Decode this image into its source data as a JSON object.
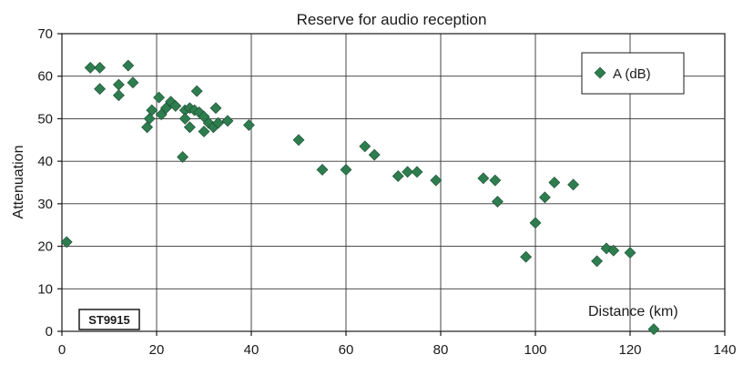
{
  "chart_data": {
    "type": "scatter",
    "title": "Reserve for audio reception",
    "ylabel": "Attenuation",
    "xlabel": "Distance (km)",
    "xlim": [
      0,
      140
    ],
    "ylim": [
      0,
      70
    ],
    "x_ticks": [
      0,
      20,
      40,
      60,
      80,
      100,
      120,
      140
    ],
    "y_ticks": [
      0,
      10,
      20,
      30,
      40,
      50,
      60,
      70
    ],
    "grid": true,
    "legend_position": "top-right",
    "marker_color": "#2e7d4f",
    "stamp": "ST9915",
    "series": [
      {
        "name": "A (dB)",
        "points": [
          [
            1,
            21
          ],
          [
            6,
            62
          ],
          [
            8,
            62
          ],
          [
            8,
            57
          ],
          [
            12,
            58
          ],
          [
            12,
            55.5
          ],
          [
            14,
            62.5
          ],
          [
            15,
            58.5
          ],
          [
            18,
            48
          ],
          [
            18.5,
            50
          ],
          [
            19,
            52
          ],
          [
            20.5,
            55
          ],
          [
            21,
            51
          ],
          [
            22,
            52.5
          ],
          [
            23,
            54
          ],
          [
            24,
            53
          ],
          [
            25.5,
            41
          ],
          [
            26,
            52
          ],
          [
            26,
            50
          ],
          [
            27,
            48
          ],
          [
            27,
            52.5
          ],
          [
            28,
            52
          ],
          [
            28.5,
            56.5
          ],
          [
            29,
            51.5
          ],
          [
            30,
            47
          ],
          [
            30,
            50.5
          ],
          [
            31,
            49
          ],
          [
            32,
            48
          ],
          [
            32.5,
            52.5
          ],
          [
            33,
            49
          ],
          [
            35,
            49.5
          ],
          [
            39.5,
            48.5
          ],
          [
            50,
            45
          ],
          [
            55,
            38
          ],
          [
            60,
            38
          ],
          [
            64,
            43.5
          ],
          [
            66,
            41.5
          ],
          [
            71,
            36.5
          ],
          [
            73,
            37.5
          ],
          [
            75,
            37.5
          ],
          [
            79,
            35.5
          ],
          [
            89,
            36
          ],
          [
            91.5,
            35.5
          ],
          [
            92,
            30.5
          ],
          [
            98,
            17.5
          ],
          [
            100,
            25.5
          ],
          [
            102,
            31.5
          ],
          [
            104,
            35
          ],
          [
            108,
            34.5
          ],
          [
            113,
            16.5
          ],
          [
            115,
            19.5
          ],
          [
            116.5,
            19
          ],
          [
            120,
            18.5
          ],
          [
            125,
            0.5
          ]
        ]
      }
    ]
  }
}
